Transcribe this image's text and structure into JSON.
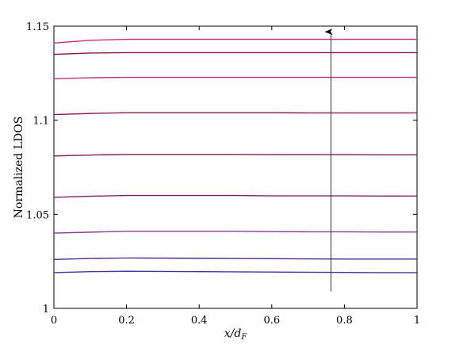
{
  "chart_data": {
    "type": "line",
    "xlabel_main": "x/d",
    "xlabel_sub": "F",
    "ylabel": "Normalized LDOS",
    "xlim": [
      0,
      1
    ],
    "ylim": [
      1,
      1.15
    ],
    "xticks": [
      0,
      0.2,
      0.4,
      0.6,
      0.8,
      1
    ],
    "xtick_labels": [
      "0",
      "0.2",
      "0.4",
      "0.6",
      "0.8",
      "1"
    ],
    "yticks": [
      1,
      1.05,
      1.1,
      1.15
    ],
    "ytick_labels": [
      "1",
      "1.05",
      "1.1",
      "1.15"
    ],
    "x": [
      0,
      0.1,
      0.2,
      0.3,
      0.4,
      0.5,
      0.6,
      0.7,
      0.8,
      0.9,
      1
    ],
    "series": [
      {
        "color": "#3a3aa0",
        "values": [
          1.019,
          1.0195,
          1.0197,
          1.0196,
          1.0195,
          1.0194,
          1.0193,
          1.0192,
          1.0191,
          1.019,
          1.019
        ]
      },
      {
        "color": "#4a2d8f",
        "values": [
          1.026,
          1.0265,
          1.0268,
          1.0267,
          1.0266,
          1.0265,
          1.0264,
          1.0263,
          1.0262,
          1.0262,
          1.0262
        ]
      },
      {
        "color": "#8a3a9a",
        "values": [
          1.04,
          1.0405,
          1.041,
          1.041,
          1.041,
          1.041,
          1.0408,
          1.0407,
          1.0407,
          1.0406,
          1.0406
        ]
      },
      {
        "color": "#7a1e6a",
        "values": [
          1.059,
          1.0596,
          1.06,
          1.06,
          1.06,
          1.06,
          1.0598,
          1.0598,
          1.0598,
          1.0597,
          1.0597
        ]
      },
      {
        "color": "#801c60",
        "values": [
          1.081,
          1.0815,
          1.0818,
          1.0818,
          1.0818,
          1.0818,
          1.0817,
          1.0817,
          1.0817,
          1.0816,
          1.0816
        ]
      },
      {
        "color": "#8a1a5a",
        "values": [
          1.103,
          1.1036,
          1.104,
          1.104,
          1.104,
          1.104,
          1.104,
          1.1039,
          1.1039,
          1.1039,
          1.1039
        ]
      },
      {
        "color": "#c0307a",
        "values": [
          1.122,
          1.1226,
          1.1228,
          1.1228,
          1.1228,
          1.1228,
          1.1228,
          1.1228,
          1.1228,
          1.1228,
          1.1228
        ]
      },
      {
        "color": "#8a1058",
        "values": [
          1.135,
          1.1357,
          1.1359,
          1.1359,
          1.1359,
          1.1359,
          1.1359,
          1.1359,
          1.1359,
          1.1359,
          1.1359
        ]
      },
      {
        "color": "#d02a80",
        "values": [
          1.141,
          1.1425,
          1.143,
          1.143,
          1.143,
          1.143,
          1.143,
          1.143,
          1.143,
          1.143,
          1.143
        ]
      }
    ],
    "annotation": {
      "type": "arrow",
      "x": 0.763,
      "y_from": 1.009,
      "y_to": 1.147
    }
  }
}
